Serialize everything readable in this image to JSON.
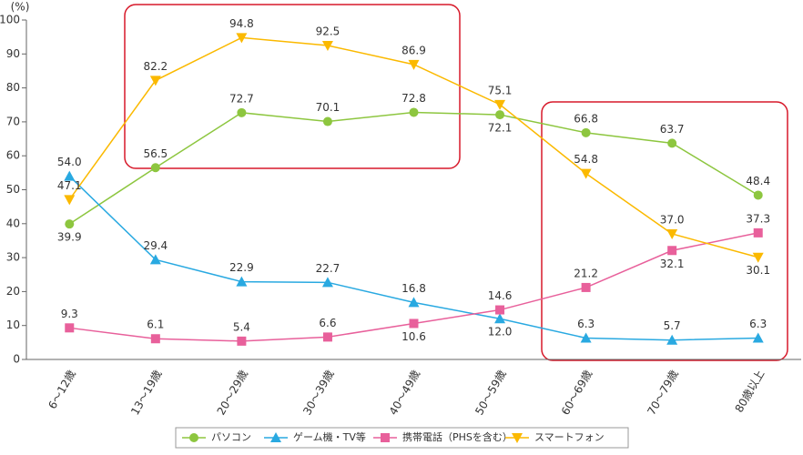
{
  "chart_data": {
    "type": "line",
    "y_unit": "(%)",
    "categories": [
      "6～12歳",
      "13～19歳",
      "20～29歳",
      "30～39歳",
      "40～49歳",
      "50～59歳",
      "60～69歳",
      "70～79歳",
      "80歳以上"
    ],
    "series": [
      {
        "name": "パソコン",
        "color": "#8dc63f",
        "marker": "circle",
        "values": [
          39.9,
          56.5,
          72.7,
          70.1,
          72.8,
          72.1,
          66.8,
          63.7,
          48.4
        ],
        "value_labels": [
          "39.9",
          "56.5",
          "72.7",
          "70.1",
          "72.8",
          "72.1",
          "66.8",
          "63.7",
          "48.4"
        ]
      },
      {
        "name": "ゲーム機・TV等",
        "color": "#29a9e1",
        "marker": "triangle-up",
        "values": [
          54.0,
          29.4,
          22.9,
          22.7,
          16.8,
          12.0,
          6.3,
          5.7,
          6.3
        ],
        "value_labels": [
          "54.0",
          "29.4",
          "22.9",
          "22.7",
          "16.8",
          "12.0",
          "6.3",
          "5.7",
          "6.3"
        ]
      },
      {
        "name": "携帯電話（PHSを含む）",
        "color": "#e8609b",
        "marker": "square",
        "values": [
          9.3,
          6.1,
          5.4,
          6.6,
          10.6,
          14.6,
          21.2,
          32.1,
          37.3
        ],
        "value_labels": [
          "9.3",
          "6.1",
          "5.4",
          "6.6",
          "10.6",
          "14.6",
          "21.2",
          "32.1",
          "37.3"
        ]
      },
      {
        "name": "スマートフォン",
        "color": "#fbb900",
        "marker": "triangle-down",
        "values": [
          47.1,
          82.2,
          94.8,
          92.5,
          86.9,
          75.1,
          54.8,
          37.0,
          30.1
        ],
        "value_labels": [
          "47.1",
          "82.2",
          "94.8",
          "92.5",
          "86.9",
          "75.1",
          "54.8",
          "37.0",
          "30.1"
        ]
      }
    ],
    "ylim": [
      0,
      100
    ],
    "yticks": [
      0,
      10,
      20,
      30,
      40,
      50,
      60,
      70,
      80,
      90,
      100
    ]
  }
}
